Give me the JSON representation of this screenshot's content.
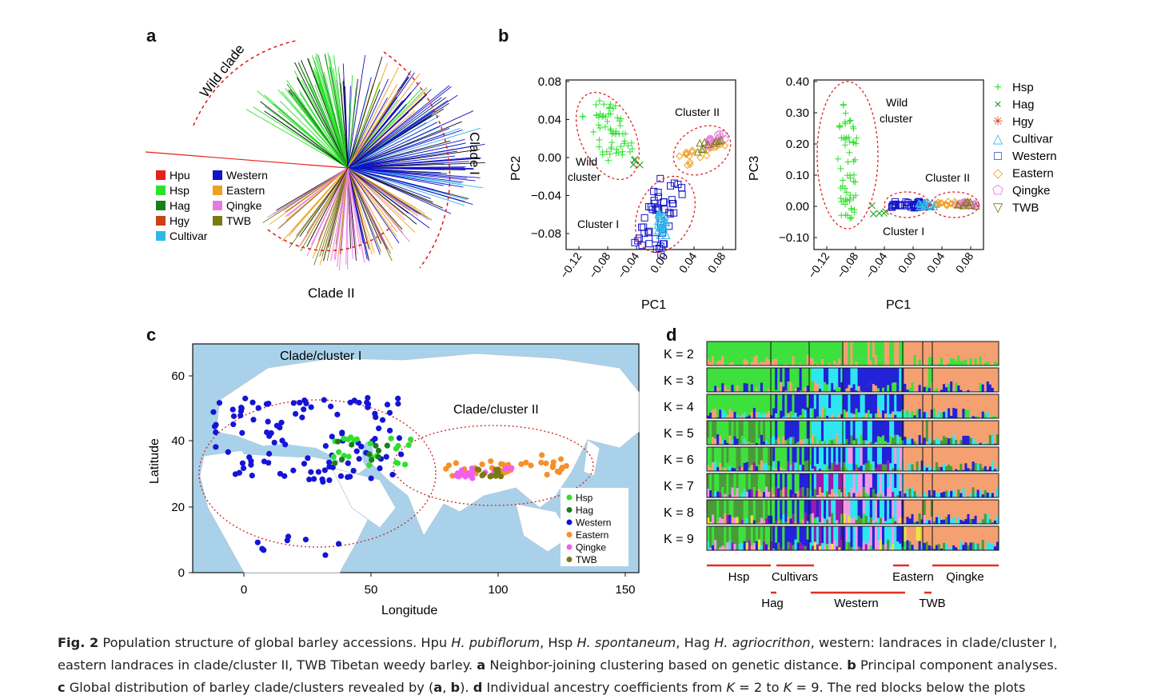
{
  "panels": {
    "a": "a",
    "b": "b",
    "c": "c",
    "d": "d"
  },
  "tree": {
    "wild_clade": "Wild clade",
    "clade_i": "Clade I",
    "clade_ii": "Clade II",
    "legend": [
      {
        "label": "Hpu",
        "color": "#e8211b"
      },
      {
        "label": "Hsp",
        "color": "#2ee02e"
      },
      {
        "label": "Hag",
        "color": "#1a7f1a"
      },
      {
        "label": "Hgy",
        "color": "#c8421a"
      },
      {
        "label": "Cultivar",
        "color": "#2fb7ea"
      },
      {
        "label": "Western",
        "color": "#1212c8"
      },
      {
        "label": "Eastern",
        "color": "#f0a020"
      },
      {
        "label": "Qingke",
        "color": "#e97ae0"
      },
      {
        "label": "TWB",
        "color": "#7a7a10"
      }
    ]
  },
  "pca": {
    "left": {
      "xlabel": "PC1",
      "ylabel": "PC2",
      "xticks": [
        "−0.12",
        "−0.08",
        "−0.04",
        "0.00",
        "0.04",
        "0.08"
      ],
      "yticks": [
        "0.08",
        "0.04",
        "0.00",
        "−0.04",
        "−0.08"
      ],
      "labels": {
        "wild_1": "Wild",
        "wild_2": "cluster",
        "cluster_i": "Cluster I",
        "cluster_ii": "Cluster II"
      }
    },
    "right": {
      "xlabel": "PC1",
      "ylabel": "PC3",
      "xticks": [
        "−0.12",
        "−0.08",
        "−0.04",
        "0.00",
        "0.04",
        "0.08"
      ],
      "yticks": [
        "0.40",
        "0.30",
        "0.20",
        "0.10",
        "0.00",
        "−0.10"
      ],
      "labels": {
        "wild_1": "Wild",
        "wild_2": "cluster",
        "cluster_i": "Cluster I",
        "cluster_ii": "Cluster II"
      }
    },
    "legend": [
      {
        "label": "Hsp",
        "marker": "+",
        "color": "#2ee02e"
      },
      {
        "label": "Hag",
        "marker": "×",
        "color": "#1a9a1a"
      },
      {
        "label": "Hgy",
        "marker": "✳",
        "color": "#e2401a"
      },
      {
        "label": "Cultivar",
        "marker": "△",
        "color": "#2fb7ea"
      },
      {
        "label": "Western",
        "marker": "□",
        "color": "#1212c8"
      },
      {
        "label": "Eastern",
        "marker": "◇",
        "color": "#f0a020"
      },
      {
        "label": "Qingke",
        "marker": "⬠",
        "color": "#e97ae0"
      },
      {
        "label": "TWB",
        "marker": "▽",
        "color": "#7a7a10"
      }
    ]
  },
  "map": {
    "xlabel": "Longitude",
    "ylabel": "Latitude",
    "xticks": [
      "0",
      "50",
      "100",
      "150"
    ],
    "yticks": [
      "60",
      "40",
      "20",
      "0"
    ],
    "clade_i": "Clade/cluster I",
    "clade_ii": "Clade/cluster II",
    "legend": [
      {
        "label": "Hsp",
        "color": "#2ee02e"
      },
      {
        "label": "Hag",
        "color": "#1a7f1a"
      },
      {
        "label": "Western",
        "color": "#1414d8"
      },
      {
        "label": "Eastern",
        "color": "#f5902a"
      },
      {
        "label": "Qingke",
        "color": "#f060f0"
      },
      {
        "label": "TWB",
        "color": "#7a7a10"
      }
    ]
  },
  "structure": {
    "k_labels": [
      "K = 2",
      "K = 3",
      "K = 4",
      "K = 5",
      "K = 6",
      "K = 7",
      "K = 8",
      "K = 9"
    ],
    "groups_top": [
      "Hsp",
      "Cultivars",
      "Eastern",
      "Qingke"
    ],
    "groups_bottom": [
      "Hag",
      "Western",
      "TWB"
    ]
  },
  "caption": {
    "fig": "Fig. 2",
    "p1": " Population structure of global barley accessions. Hpu ",
    "hpu": "H. pubiflorum",
    "p2": ", Hsp ",
    "hsp": "H. spontaneum",
    "p3": ", Hag ",
    "hag": "H. agriocrithon",
    "p4": ", western: landraces in clade/cluster I,",
    "line2a": "eastern landraces in clade/cluster II, TWB Tibetan weedy barley. ",
    "a": "a",
    "line2b": " Neighbor-joining clustering based on genetic distance. ",
    "b": "b",
    "line2c": " Principal component analyses.",
    "c": "c",
    "line3a": " Global distribution of barley clade/clusters revealed by (",
    "line3a2": "a",
    "line3a3": ", ",
    "line3a4": "b",
    "line3b": "). ",
    "d": "d",
    "line3c": " Individual ancestry coefficients from ",
    "k": "K",
    "line3d": " = 2 to ",
    "k2": "K",
    "line3e": " = 9. The red blocks below the plots"
  }
}
